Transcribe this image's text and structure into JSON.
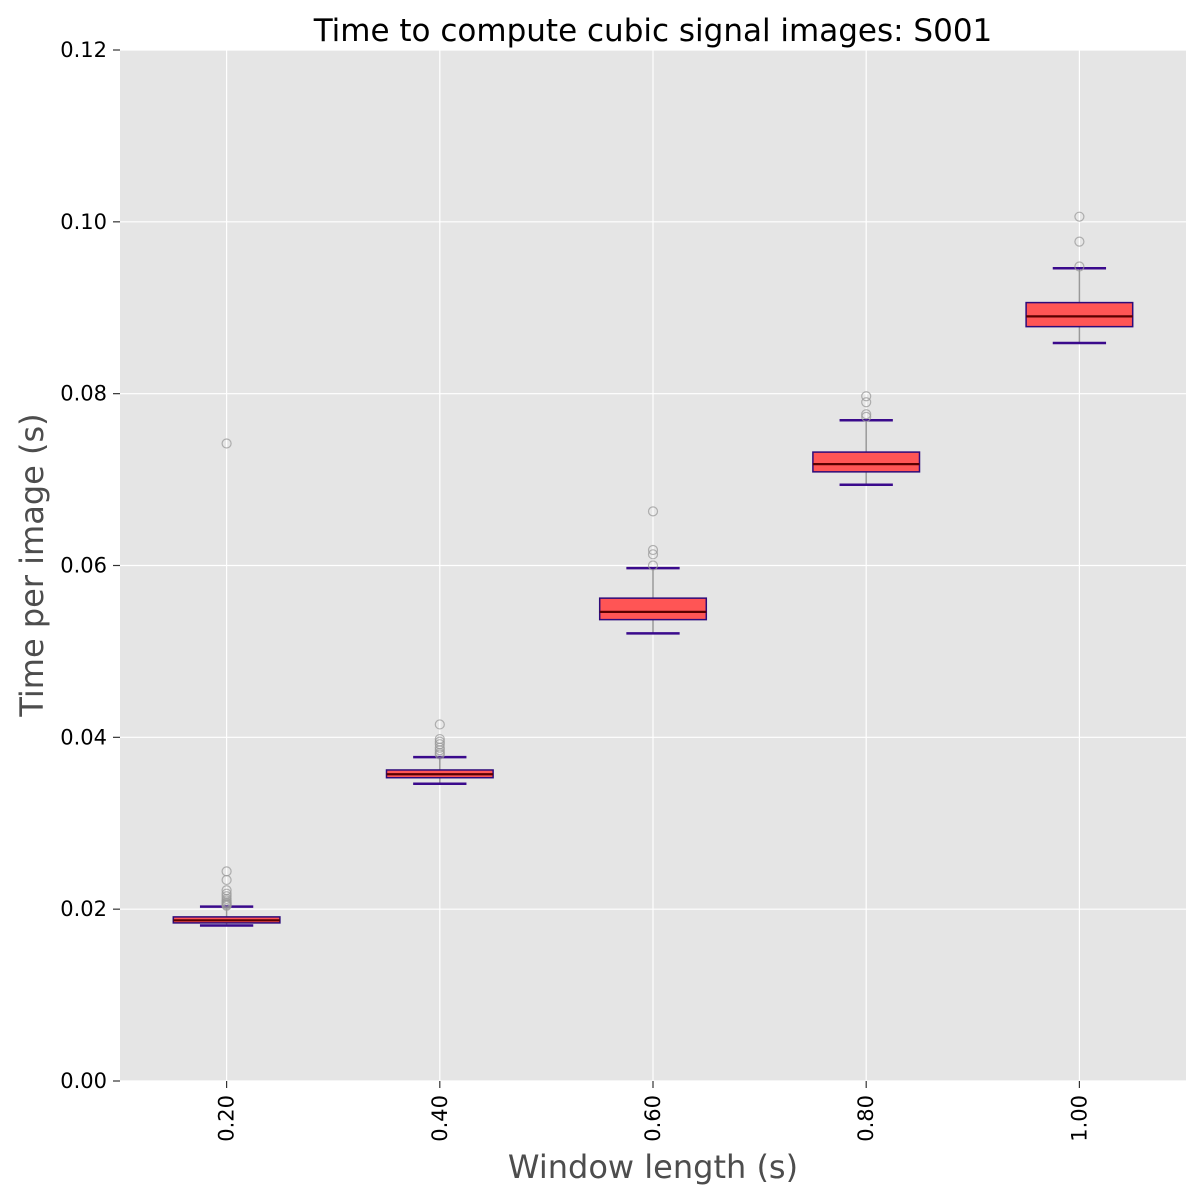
{
  "chart_data": {
    "type": "box",
    "title": "Time to compute cubic signal images: S001",
    "xlabel": "Window length (s)",
    "ylabel": "Time per image (s)",
    "ylim": [
      0,
      0.12
    ],
    "yticks": [
      "0.00",
      "0.02",
      "0.04",
      "0.06",
      "0.08",
      "0.10",
      "0.12"
    ],
    "grid": true,
    "categories": [
      "0.20",
      "0.40",
      "0.60",
      "0.80",
      "1.00"
    ],
    "boxes": [
      {
        "whislo": 0.0181,
        "q1": 0.0184,
        "med": 0.0187,
        "q3": 0.0191,
        "whishi": 0.0203,
        "fliers": [
          0.0742,
          0.0244,
          0.0234,
          0.0222,
          0.0218,
          0.0215,
          0.0212,
          0.021,
          0.0208,
          0.0207,
          0.0206,
          0.0205,
          0.0204
        ]
      },
      {
        "whislo": 0.0346,
        "q1": 0.0353,
        "med": 0.0357,
        "q3": 0.0362,
        "whishi": 0.0377,
        "fliers": [
          0.0415,
          0.0398,
          0.0395,
          0.0392,
          0.0388,
          0.0385,
          0.0382,
          0.038
        ]
      },
      {
        "whislo": 0.0521,
        "q1": 0.0537,
        "med": 0.0546,
        "q3": 0.0562,
        "whishi": 0.0597,
        "fliers": [
          0.0663,
          0.0618,
          0.0613,
          0.06
        ]
      },
      {
        "whislo": 0.0694,
        "q1": 0.0709,
        "med": 0.0718,
        "q3": 0.0732,
        "whishi": 0.0769,
        "fliers": [
          0.0797,
          0.079,
          0.0776,
          0.0773
        ]
      },
      {
        "whislo": 0.0859,
        "q1": 0.0878,
        "med": 0.089,
        "q3": 0.0906,
        "whishi": 0.0946,
        "fliers": [
          0.1006,
          0.0977,
          0.0948
        ]
      }
    ],
    "colors": {
      "background": "#e5e5e5",
      "grid": "#ffffff",
      "box_fill": "#ff5555",
      "box_edge": "#2e0b7a",
      "median": "#5a0000",
      "whisker": "#999999",
      "cap": "#3a0a8c",
      "flier": "#999999"
    }
  }
}
